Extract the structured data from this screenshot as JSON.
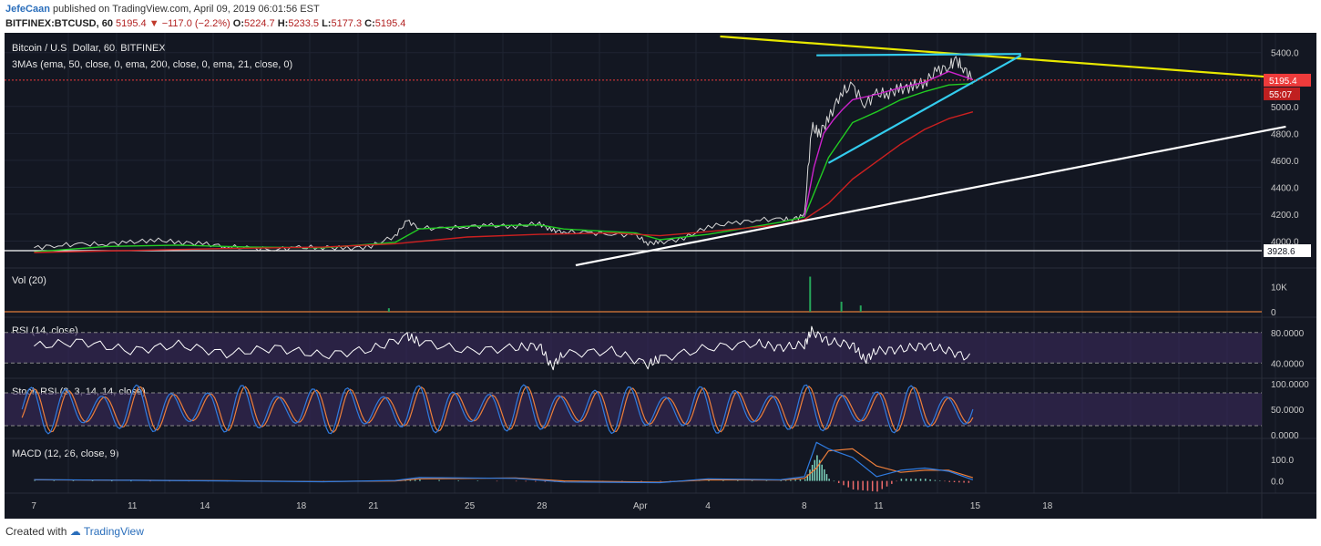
{
  "header": {
    "author": "JefeCaan",
    "published": "published on TradingView.com, April 09, 2019 06:01:56 EST",
    "symbol": "BITFINEX:BTCUSD, 60",
    "last": "5195.4",
    "change": "−117.0 (−2.2%)",
    "o_label": "O:",
    "o": "5224.7",
    "h_label": "H:",
    "h": "5233.5",
    "l_label": "L:",
    "l": "5177.3",
    "c_label": "C:",
    "c": "5195.4"
  },
  "footer": {
    "created": "Created with",
    "brand": "TradingView"
  },
  "colors": {
    "bg": "#131722",
    "grid": "#1f2433",
    "price": "#d8d8d8",
    "ema50": "#22cc22",
    "ema200": "#cc2020",
    "ema21": "#cc22cc",
    "trend_yellow": "#e8e800",
    "channel_cyan": "#33ccee",
    "support_white": "#ffffff",
    "rsi": "#ffffff",
    "rsi_band": "#3a2a5c",
    "stoch_k": "#2f7be0",
    "stoch_d": "#ee7f3a",
    "macd": "#2f7be0",
    "signal": "#ee7f3a",
    "hist_pos": "#7fd6c0",
    "hist_neg": "#ee6b6b",
    "price_badge": "#ee3b3b",
    "level_badge": "#ffffff"
  },
  "chart_data": [
    {
      "type": "line",
      "title": "Bitcoin / U.S. Dollar, 60, BITFINEX",
      "subtitle": "3MAs (ema, 50, close, 0, ema, 200, close, 0, ema, 21, close, 0)",
      "x_ticks": [
        "7",
        "11",
        "14",
        "18",
        "21",
        "25",
        "28",
        "Apr",
        "4",
        "8",
        "11",
        "15",
        "18"
      ],
      "y_ticks": [
        4000,
        4200,
        4400,
        4600,
        4800,
        5000,
        5400
      ],
      "ylim": [
        3800,
        5520
      ],
      "last_price_label": "5195.4",
      "countdown_label": "55:07",
      "level_label": "3928.6",
      "level": 3928.6,
      "series": [
        {
          "role": "price",
          "x": [
            0,
            1,
            2,
            3,
            4,
            5,
            6,
            7,
            8,
            9,
            10,
            11,
            12,
            13,
            14,
            15,
            15.5,
            16,
            17,
            18,
            19,
            20,
            21,
            21.5,
            22,
            23,
            24,
            25,
            25.5,
            26,
            27,
            28,
            29,
            30,
            31,
            31.5,
            32,
            32.3,
            32.6,
            33,
            33.5,
            34,
            34.5,
            35,
            35.5,
            36,
            36.5,
            37,
            37.5,
            38,
            38.3,
            38.6,
            39
          ],
          "y": [
            3950,
            3970,
            3975,
            3980,
            3990,
            4010,
            3990,
            3980,
            3960,
            3945,
            3940,
            3950,
            3955,
            3945,
            3960,
            4040,
            4150,
            4100,
            4090,
            4110,
            4115,
            4110,
            4130,
            4080,
            4070,
            4060,
            4055,
            4040,
            3985,
            3990,
            4020,
            4110,
            4130,
            4160,
            4160,
            4165,
            4190,
            4850,
            4800,
            4900,
            5100,
            5150,
            5020,
            5090,
            5100,
            5130,
            5150,
            5180,
            5260,
            5300,
            5340,
            5290,
            5195.4
          ]
        },
        {
          "role": "ema50",
          "x": [
            0,
            3,
            6,
            9,
            12,
            15,
            16,
            18,
            21,
            22,
            25,
            26,
            28,
            31,
            32,
            32.5,
            33,
            34,
            35,
            36,
            37,
            38,
            39
          ],
          "y": [
            3920,
            3960,
            3970,
            3955,
            3950,
            3990,
            4090,
            4110,
            4120,
            4090,
            4060,
            4010,
            4050,
            4140,
            4180,
            4400,
            4620,
            4880,
            4960,
            5050,
            5110,
            5160,
            5170
          ]
        },
        {
          "role": "ema200",
          "x": [
            0,
            4,
            8,
            12,
            15,
            18,
            21,
            24,
            26,
            28,
            31,
            32,
            33,
            34,
            35,
            36,
            37,
            38,
            39
          ],
          "y": [
            3915,
            3930,
            3945,
            3955,
            3980,
            4030,
            4050,
            4060,
            4040,
            4070,
            4120,
            4160,
            4280,
            4460,
            4590,
            4720,
            4830,
            4910,
            4960
          ]
        },
        {
          "role": "ema21",
          "x": [
            32,
            32.4,
            32.8,
            33.2,
            33.6,
            34,
            35,
            36,
            37,
            38,
            39
          ],
          "y": [
            4180,
            4550,
            4800,
            4900,
            4980,
            5050,
            5090,
            5140,
            5180,
            5260,
            5200
          ]
        }
      ],
      "trendlines": [
        {
          "role": "descending",
          "x": [
            28.5,
            52
          ],
          "y": [
            5520,
            5210
          ]
        },
        {
          "role": "channel_top",
          "x": [
            32.5,
            41
          ],
          "y": [
            5380,
            5390
          ]
        },
        {
          "role": "channel_bottom",
          "x": [
            33,
            41
          ],
          "y": [
            4580,
            5380
          ]
        },
        {
          "role": "support",
          "x": [
            22.5,
            52
          ],
          "y": [
            3820,
            4850
          ]
        }
      ]
    },
    {
      "type": "bar",
      "title": "Vol (20)",
      "y_ticks_labels": [
        "10K",
        "0"
      ],
      "ylim": [
        0,
        16000
      ],
      "spikes": [
        {
          "x": 14.7,
          "v": 1400
        },
        {
          "x": 32.2,
          "v": 14000
        },
        {
          "x": 33.5,
          "v": 4000
        },
        {
          "x": 34.3,
          "v": 2500
        }
      ]
    },
    {
      "type": "line",
      "title": "RSI (14, close)",
      "y_ticks_labels": [
        "80.0000",
        "40.0000"
      ],
      "ylim": [
        20,
        100
      ],
      "band": [
        40,
        80
      ],
      "x": [
        0,
        2,
        4,
        6,
        8,
        10,
        12,
        14,
        15.5,
        16,
        18,
        20,
        21,
        21.5,
        22,
        24,
        25.5,
        26,
        28,
        30,
        31,
        32,
        32.3,
        33,
        34,
        34.5,
        35,
        36,
        37,
        38,
        39
      ],
      "y": [
        62,
        68,
        56,
        64,
        52,
        60,
        50,
        58,
        75,
        68,
        56,
        60,
        63,
        35,
        52,
        56,
        38,
        46,
        60,
        66,
        60,
        64,
        82,
        68,
        64,
        44,
        56,
        58,
        63,
        56,
        45
      ]
    },
    {
      "type": "line",
      "title": "Stoch RSI (3, 3, 14, 14, close)",
      "y_ticks_labels": [
        "100.0000",
        "50.0000",
        "0.0000"
      ],
      "ylim": [
        0,
        100
      ],
      "band": [
        20,
        80
      ],
      "series": [
        {
          "role": "k"
        },
        {
          "role": "d"
        }
      ],
      "cycles": 27
    },
    {
      "type": "line",
      "title": "MACD (12, 26, close, 9)",
      "y_ticks_labels": [
        "100.0",
        "0.0"
      ],
      "ylim": [
        -40,
        190
      ],
      "macd": {
        "x": [
          0,
          4,
          8,
          12,
          15,
          16,
          20,
          22,
          26,
          28,
          31,
          32,
          32.5,
          33,
          34,
          35,
          36,
          37,
          38,
          39
        ],
        "y": [
          6,
          3,
          0,
          -4,
          2,
          16,
          12,
          -5,
          -8,
          10,
          5,
          20,
          180,
          150,
          110,
          20,
          50,
          60,
          45,
          5
        ]
      },
      "signal": {
        "x": [
          0,
          4,
          8,
          12,
          15,
          16,
          20,
          22,
          26,
          28,
          31,
          32,
          32.5,
          33,
          34,
          35,
          36,
          37,
          38,
          39
        ],
        "y": [
          5,
          3,
          1,
          -3,
          0,
          10,
          14,
          0,
          -6,
          5,
          4,
          12,
          60,
          140,
          150,
          70,
          40,
          50,
          50,
          15
        ]
      }
    }
  ]
}
